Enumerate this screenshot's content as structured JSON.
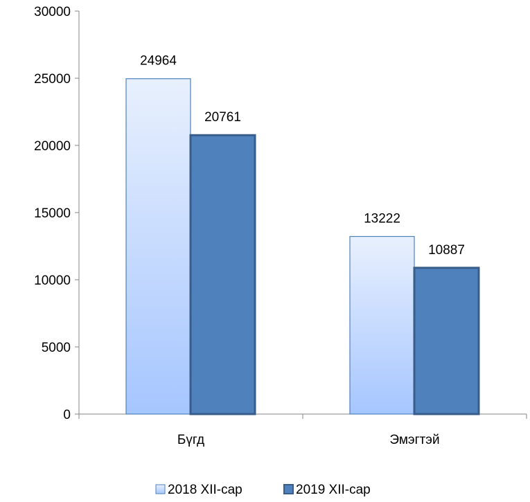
{
  "chart_data": {
    "type": "bar",
    "title": "",
    "xlabel": "",
    "ylabel": "",
    "categories": [
      "Бүгд",
      "Эмэгтэй"
    ],
    "series": [
      {
        "name": "2018 XII-сар",
        "values": [
          24964,
          13222
        ],
        "fill_top": "#e8f0fd",
        "fill_bottom": "#a6c6ff",
        "stroke": "#4f81bd"
      },
      {
        "name": "2019 XII-сар",
        "values": [
          20761,
          10887
        ],
        "fill_top": "#4f81bd",
        "fill_bottom": "#4f81bd",
        "stroke": "#385d8a"
      }
    ],
    "ylim": [
      0,
      30000
    ],
    "yticks": [
      0,
      5000,
      10000,
      15000,
      20000,
      25000,
      30000
    ],
    "data_labels": true,
    "grid": false,
    "legend_position": "bottom"
  }
}
